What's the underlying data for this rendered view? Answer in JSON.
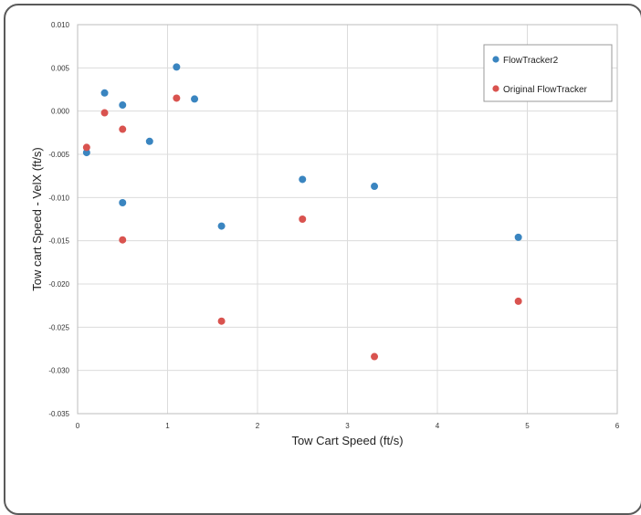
{
  "chart_data": {
    "type": "scatter",
    "xlabel": "Tow Cart Speed (ft/s)",
    "ylabel": "Tow cart Speed - VelX (ft/s)",
    "xlim": [
      0,
      6
    ],
    "ylim": [
      -0.035,
      0.01
    ],
    "x_ticks": [
      0,
      1,
      2,
      3,
      4,
      5,
      6
    ],
    "y_ticks": [
      0.01,
      0.005,
      0.0,
      -0.005,
      -0.01,
      -0.015,
      -0.02,
      -0.025,
      -0.03,
      -0.035
    ],
    "x_tick_labels": [
      "0",
      "1",
      "2",
      "3",
      "4",
      "5",
      "6"
    ],
    "y_tick_labels": [
      "0.010",
      "0.005",
      "0.000",
      "-0.005",
      "-0.010",
      "-0.015",
      "-0.020",
      "-0.025",
      "-0.030",
      "-0.035"
    ],
    "grid": true,
    "legend_position": "top-right",
    "series": [
      {
        "name": "FlowTracker2",
        "color": "#3a85c0",
        "points": [
          {
            "x": 0.1,
            "y": -0.0048
          },
          {
            "x": 0.3,
            "y": 0.0021
          },
          {
            "x": 0.5,
            "y": 0.0007
          },
          {
            "x": 0.5,
            "y": -0.0106
          },
          {
            "x": 0.8,
            "y": -0.0035
          },
          {
            "x": 1.1,
            "y": 0.0051
          },
          {
            "x": 1.3,
            "y": 0.0014
          },
          {
            "x": 1.6,
            "y": -0.0133
          },
          {
            "x": 2.5,
            "y": -0.0079
          },
          {
            "x": 3.3,
            "y": -0.0087
          },
          {
            "x": 4.9,
            "y": -0.0146
          }
        ]
      },
      {
        "name": "Original FlowTracker",
        "color": "#d9534f",
        "points": [
          {
            "x": 0.1,
            "y": -0.0042
          },
          {
            "x": 0.3,
            "y": -0.0002
          },
          {
            "x": 0.5,
            "y": -0.0021
          },
          {
            "x": 0.5,
            "y": -0.0149
          },
          {
            "x": 1.1,
            "y": 0.0015
          },
          {
            "x": 1.6,
            "y": -0.0243
          },
          {
            "x": 2.5,
            "y": -0.0125
          },
          {
            "x": 3.3,
            "y": -0.0284
          },
          {
            "x": 4.9,
            "y": -0.022
          }
        ]
      }
    ]
  }
}
